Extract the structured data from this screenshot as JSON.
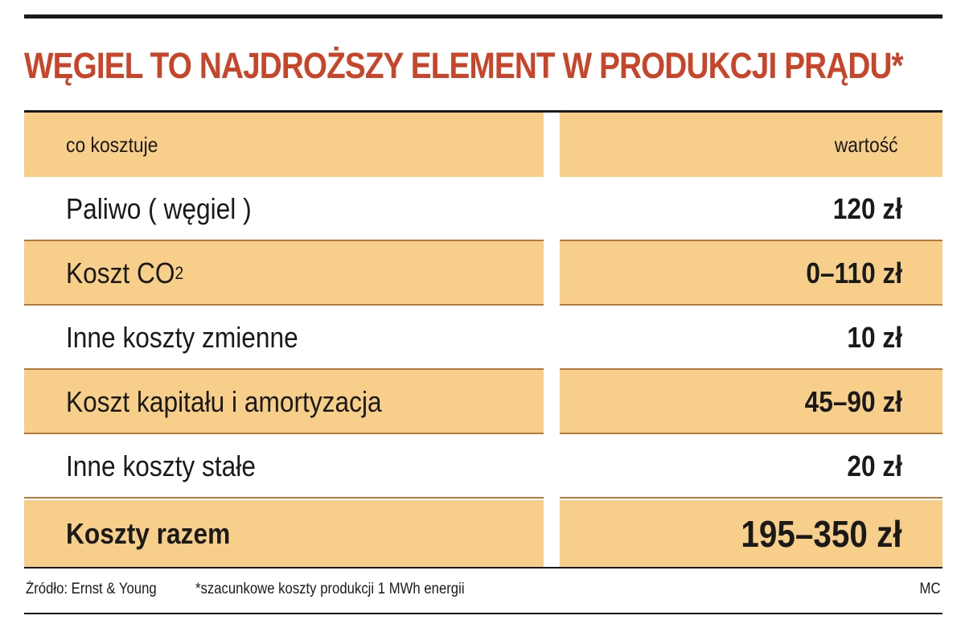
{
  "title": "WĘGIEL TO NAJDROŻSZY ELEMENT W PRODUKCJI PRĄDU*",
  "table": {
    "headers": {
      "item": "co kosztuje",
      "value": "wartość"
    },
    "rows": [
      {
        "item": "Paliwo ( węgiel )",
        "value": "120  zł"
      },
      {
        "item": "Koszt CO",
        "item_sub": "2",
        "value": "0–110 zł"
      },
      {
        "item": "Inne koszty zmienne",
        "value": "10 zł"
      },
      {
        "item": "Koszt kapitału i amortyzacja",
        "value": "45–90 zł"
      },
      {
        "item": "Inne koszty stałe",
        "value": "20 zł"
      }
    ],
    "total": {
      "item": "Koszty razem",
      "value": "195–350 zł"
    }
  },
  "footer": {
    "source": "Źródło: Ernst & Young",
    "note": "*szacunkowe koszty produkcji 1 MWh energii",
    "author": "MC"
  },
  "colors": {
    "title": "#c8452a",
    "shaded_row": "#f7cf8b",
    "rule": "#1a1a1a"
  }
}
